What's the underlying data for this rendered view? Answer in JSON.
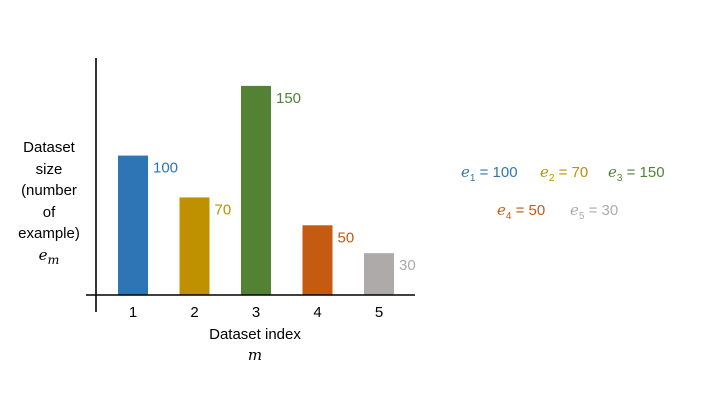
{
  "chart_data": {
    "type": "bar",
    "title": "",
    "categories": [
      "1",
      "2",
      "3",
      "4",
      "5"
    ],
    "values": [
      100,
      70,
      150,
      50,
      30
    ],
    "data_labels": [
      "100",
      "70",
      "150",
      "50",
      "30"
    ],
    "colors": [
      "#2E75B6",
      "#BF9000",
      "#548235",
      "#C55A11",
      "#AEAAAA"
    ],
    "xlabel": "Dataset index",
    "xlabel_var": "m",
    "ylabel_lines": [
      "Dataset",
      "size",
      "(number",
      "of",
      "example)"
    ],
    "ylabel_var": "e",
    "ylabel_var_sub": "m",
    "ylim": [
      0,
      170
    ],
    "grid": false,
    "legend": [
      {
        "symbol": "e",
        "sub": "1",
        "text": " = 100",
        "color": "#2E75B6"
      },
      {
        "symbol": "e",
        "sub": "2",
        "text": " = 70",
        "color": "#BF9000"
      },
      {
        "symbol": "e",
        "sub": "3",
        "text": " = 150",
        "color": "#548235"
      },
      {
        "symbol": "e",
        "sub": "4",
        "text": " = 50",
        "color": "#C55A11"
      },
      {
        "symbol": "e",
        "sub": "5",
        "text": " = 30",
        "color": "#AEAAAA"
      }
    ]
  }
}
